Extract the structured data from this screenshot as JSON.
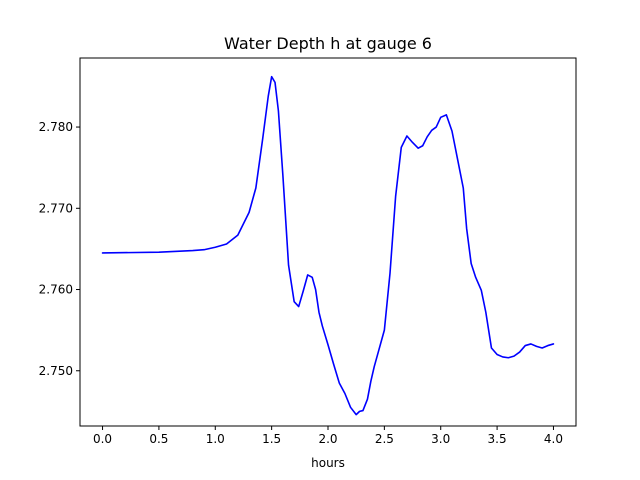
{
  "chart_data": {
    "type": "line",
    "title": "Water Depth h at gauge 6",
    "xlabel": "hours",
    "ylabel": "",
    "xlim": [
      -0.2,
      4.2
    ],
    "ylim": [
      2.7432,
      2.7885
    ],
    "xticks": [
      0.0,
      0.5,
      1.0,
      1.5,
      2.0,
      2.5,
      3.0,
      3.5,
      4.0
    ],
    "xtick_labels": [
      "0.0",
      "0.5",
      "1.0",
      "1.5",
      "2.0",
      "2.5",
      "3.0",
      "3.5",
      "4.0"
    ],
    "yticks": [
      2.75,
      2.76,
      2.77,
      2.78
    ],
    "ytick_labels": [
      "2.750",
      "2.760",
      "2.770",
      "2.780"
    ],
    "grid": false,
    "legend": "none",
    "series": [
      {
        "color": "#0000ff",
        "x": [
          0.0,
          0.5,
          0.8,
          0.9,
          1.0,
          1.1,
          1.2,
          1.3,
          1.36,
          1.42,
          1.47,
          1.5,
          1.53,
          1.56,
          1.6,
          1.65,
          1.7,
          1.74,
          1.78,
          1.82,
          1.86,
          1.89,
          1.92,
          1.95,
          2.0,
          2.05,
          2.1,
          2.15,
          2.2,
          2.25,
          2.28,
          2.31,
          2.35,
          2.38,
          2.41,
          2.45,
          2.5,
          2.55,
          2.6,
          2.65,
          2.7,
          2.75,
          2.8,
          2.84,
          2.88,
          2.92,
          2.96,
          3.0,
          3.05,
          3.1,
          3.15,
          3.2,
          3.23,
          3.27,
          3.31,
          3.36,
          3.4,
          3.45,
          3.5,
          3.55,
          3.6,
          3.65,
          3.7,
          3.75,
          3.8,
          3.85,
          3.9,
          3.95,
          4.0
        ],
        "y": [
          2.7645,
          2.7646,
          2.7648,
          2.7649,
          2.7652,
          2.7656,
          2.7667,
          2.7695,
          2.7725,
          2.7785,
          2.7838,
          2.7862,
          2.7855,
          2.782,
          2.774,
          2.763,
          2.7585,
          2.7579,
          2.7598,
          2.7618,
          2.7615,
          2.76,
          2.7572,
          2.7555,
          2.7532,
          2.7508,
          2.7485,
          2.7472,
          2.7455,
          2.7446,
          2.745,
          2.7451,
          2.7465,
          2.7487,
          2.7505,
          2.7525,
          2.755,
          2.762,
          2.7715,
          2.7775,
          2.7789,
          2.7781,
          2.7774,
          2.7777,
          2.7788,
          2.7796,
          2.78,
          2.7812,
          2.7815,
          2.7795,
          2.776,
          2.7725,
          2.7675,
          2.7632,
          2.7615,
          2.7599,
          2.7572,
          2.7528,
          2.752,
          2.7517,
          2.7516,
          2.7518,
          2.7523,
          2.7531,
          2.7533,
          2.753,
          2.7528,
          2.7531,
          2.7533
        ]
      }
    ]
  }
}
